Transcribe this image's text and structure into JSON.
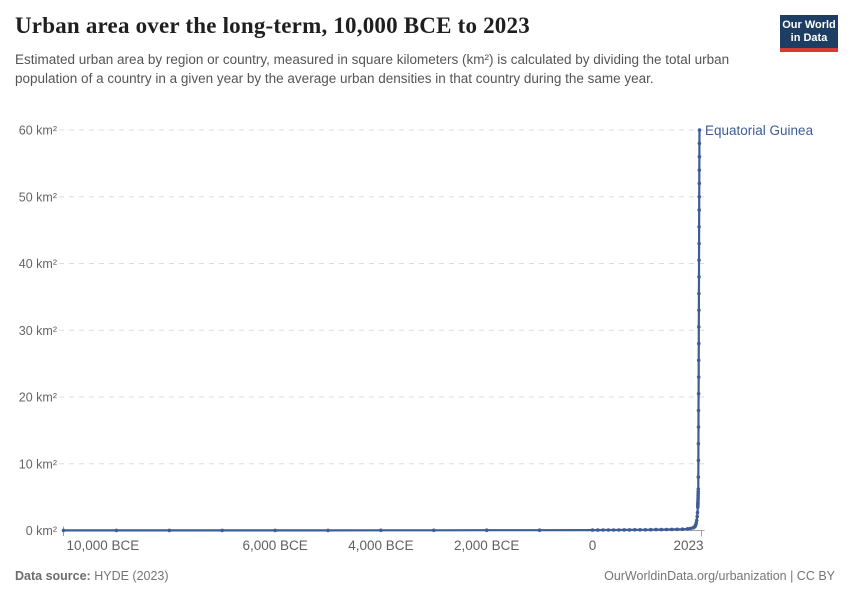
{
  "header": {
    "title": "Urban area over the long-term, 10,000 BCE to 2023",
    "subtitle": "Estimated urban area by region or country, measured in square kilometers (km²) is calculated by dividing the total urban population of a country in a given year by the average urban densities in that country during the same year.",
    "logo": {
      "line1": "Our World",
      "line2": "in Data"
    }
  },
  "footer": {
    "source_label": "Data source:",
    "source_value": " HYDE (2023)",
    "right_text": "OurWorldinData.org/urbanization | CC BY"
  },
  "colors": {
    "line": "#3e5c96",
    "grid": "#dddddd",
    "axis": "#a1a1a1",
    "tick_text": "#666666",
    "logo_bg": "#1d3d63",
    "logo_accent": "#d73c34"
  },
  "chart_data": {
    "type": "line",
    "title": "Urban area over the long-term, 10,000 BCE to 2023",
    "xlabel": "",
    "ylabel": "km²",
    "xlim": [
      -10000,
      2023
    ],
    "ylim": [
      0,
      60
    ],
    "grid": "dashed-horizontal",
    "legend_position": "right-end-label",
    "y_ticks": [
      {
        "value": 0,
        "label": "0 km²"
      },
      {
        "value": 10,
        "label": "10 km²"
      },
      {
        "value": 20,
        "label": "20 km²"
      },
      {
        "value": 30,
        "label": "30 km²"
      },
      {
        "value": 40,
        "label": "40 km²"
      },
      {
        "value": 50,
        "label": "50 km²"
      },
      {
        "value": 60,
        "label": "60 km²"
      }
    ],
    "x_ticks": [
      {
        "year": -10000,
        "label": "10,000 BCE"
      },
      {
        "year": -6000,
        "label": "6,000 BCE"
      },
      {
        "year": -4000,
        "label": "4,000 BCE"
      },
      {
        "year": -2000,
        "label": "2,000 BCE"
      },
      {
        "year": 0,
        "label": "0"
      },
      {
        "year": 2023,
        "label": "2023"
      }
    ],
    "series": [
      {
        "name": "Equatorial Guinea",
        "points": [
          [
            -10000,
            0.01
          ],
          [
            -9000,
            0.01
          ],
          [
            -8000,
            0.01
          ],
          [
            -7000,
            0.02
          ],
          [
            -6000,
            0.02
          ],
          [
            -5000,
            0.02
          ],
          [
            -4000,
            0.03
          ],
          [
            -3000,
            0.03
          ],
          [
            -2000,
            0.04
          ],
          [
            -1000,
            0.05
          ],
          [
            0,
            0.06
          ],
          [
            100,
            0.06
          ],
          [
            200,
            0.07
          ],
          [
            300,
            0.07
          ],
          [
            400,
            0.08
          ],
          [
            500,
            0.08
          ],
          [
            600,
            0.09
          ],
          [
            700,
            0.09
          ],
          [
            800,
            0.1
          ],
          [
            900,
            0.1
          ],
          [
            1000,
            0.11
          ],
          [
            1100,
            0.12
          ],
          [
            1200,
            0.13
          ],
          [
            1300,
            0.14
          ],
          [
            1400,
            0.15
          ],
          [
            1500,
            0.16
          ],
          [
            1600,
            0.18
          ],
          [
            1700,
            0.2
          ],
          [
            1800,
            0.25
          ],
          [
            1850,
            0.3
          ],
          [
            1900,
            0.4
          ],
          [
            1920,
            0.5
          ],
          [
            1940,
            0.65
          ],
          [
            1950,
            0.8
          ],
          [
            1960,
            1.1
          ],
          [
            1970,
            1.5
          ],
          [
            1980,
            2.1
          ],
          [
            1985,
            2.7
          ],
          [
            1990,
            3.5
          ],
          [
            1991,
            3.7
          ],
          [
            1992,
            3.9
          ],
          [
            1993,
            4.1
          ],
          [
            1994,
            4.3
          ],
          [
            1995,
            4.6
          ],
          [
            1996,
            4.9
          ],
          [
            1997,
            5.2
          ],
          [
            1998,
            5.5
          ],
          [
            1999,
            5.8
          ],
          [
            2000,
            6.2
          ],
          [
            2001,
            8
          ],
          [
            2002,
            10.5
          ],
          [
            2003,
            13
          ],
          [
            2004,
            15.5
          ],
          [
            2005,
            18
          ],
          [
            2006,
            20.5
          ],
          [
            2007,
            23
          ],
          [
            2008,
            25.5
          ],
          [
            2009,
            28
          ],
          [
            2010,
            30.5
          ],
          [
            2011,
            33
          ],
          [
            2012,
            35.5
          ],
          [
            2013,
            38
          ],
          [
            2014,
            40.5
          ],
          [
            2015,
            43
          ],
          [
            2016,
            45.5
          ],
          [
            2017,
            48
          ],
          [
            2018,
            50
          ],
          [
            2019,
            52
          ],
          [
            2020,
            54
          ],
          [
            2021,
            56
          ],
          [
            2022,
            58
          ],
          [
            2023,
            60
          ]
        ]
      }
    ]
  }
}
